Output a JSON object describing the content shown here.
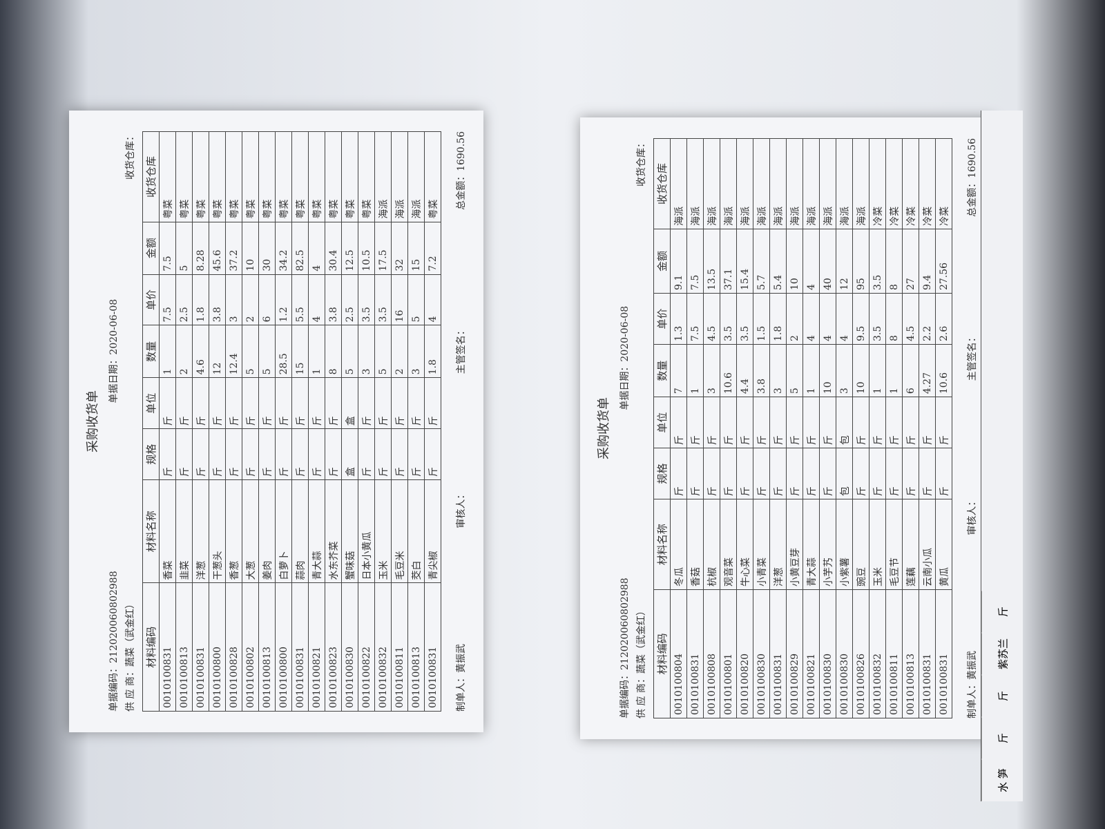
{
  "documents": [
    {
      "title": "采购收货单",
      "code_label": "单据编码：",
      "code": "212020060802988",
      "date_label": "单据日期：",
      "date": "2020-06-08",
      "supplier_label": "供 应 商：",
      "supplier": "蔬菜（武金红）",
      "warehouse_label": "收货仓库：",
      "columns": [
        "材料编码",
        "材料名称",
        "规格",
        "单位",
        "数量",
        "单价",
        "金额",
        "收货仓库"
      ],
      "rows": [
        [
          "0010100831",
          "香菜",
          "斤",
          "斤",
          1,
          7.5,
          7.5,
          "粤菜"
        ],
        [
          "0010100813",
          "韭菜",
          "斤",
          "斤",
          2,
          2.5,
          5,
          "粤菜"
        ],
        [
          "0010100831",
          "洋葱",
          "斤",
          "斤",
          4.6,
          1.8,
          8.28,
          "粤菜"
        ],
        [
          "0010100800",
          "干葱头",
          "斤",
          "斤",
          12,
          3.8,
          45.6,
          "粤菜"
        ],
        [
          "0010100828",
          "香葱",
          "斤",
          "斤",
          12.4,
          3,
          37.2,
          "粤菜"
        ],
        [
          "0010100802",
          "大葱",
          "斤",
          "斤",
          5,
          2,
          10,
          "粤菜"
        ],
        [
          "0010100813",
          "姜肉",
          "斤",
          "斤",
          5,
          6,
          30,
          "粤菜"
        ],
        [
          "0010100800",
          "白萝卜",
          "斤",
          "斤",
          28.5,
          1.2,
          34.2,
          "粤菜"
        ],
        [
          "0010100831",
          "蒜肉",
          "斤",
          "斤",
          15,
          5.5,
          82.5,
          "粤菜"
        ],
        [
          "0010100821",
          "青大蒜",
          "斤",
          "斤",
          1,
          4,
          4,
          "粤菜"
        ],
        [
          "0010100823",
          "水东芥菜",
          "斤",
          "斤",
          8,
          3.8,
          30.4,
          "粤菜"
        ],
        [
          "0010100830",
          "蟹味菇",
          "盒",
          "盒",
          5,
          2.5,
          12.5,
          "粤菜"
        ],
        [
          "0010100822",
          "日本小黄瓜",
          "斤",
          "斤",
          3,
          3.5,
          10.5,
          "粤菜"
        ],
        [
          "0010100832",
          "玉米",
          "斤",
          "斤",
          5,
          3.5,
          17.5,
          "海派"
        ],
        [
          "0010100811",
          "毛豆米",
          "斤",
          "斤",
          2,
          16,
          32,
          "海派"
        ],
        [
          "0010100813",
          "茭白",
          "斤",
          "斤",
          3,
          5,
          15,
          "海派"
        ],
        [
          "0010100831",
          "青尖椒",
          "斤",
          "斤",
          1.8,
          4,
          7.2,
          "粤菜"
        ]
      ],
      "footer": {
        "maker_label": "制单人：",
        "maker": "黄振武",
        "auditor_label": "审核人：",
        "manager_label": "主管签名：",
        "total_label": "总金额：",
        "total": 1690.56
      }
    },
    {
      "title": "采购收货单",
      "code_label": "单据编码：",
      "code": "212020060802988",
      "date_label": "单据日期：",
      "date": "2020-06-08",
      "supplier_label": "供 应 商：",
      "supplier": "蔬菜（武金红）",
      "warehouse_label": "收货仓库：",
      "columns": [
        "材料编码",
        "材料名称",
        "规格",
        "单位",
        "数量",
        "单价",
        "金额",
        "收货仓库"
      ],
      "rows": [
        [
          "0010100804",
          "冬瓜",
          "斤",
          "斤",
          7,
          1.3,
          9.1,
          "海派"
        ],
        [
          "0010100831",
          "香菇",
          "斤",
          "斤",
          1,
          7.5,
          7.5,
          "海派"
        ],
        [
          "0010100808",
          "杭椒",
          "斤",
          "斤",
          3,
          4.5,
          13.5,
          "海派"
        ],
        [
          "0010100801",
          "观音菜",
          "斤",
          "斤",
          10.6,
          3.5,
          37.1,
          "海派"
        ],
        [
          "0010100820",
          "牛心菜",
          "斤",
          "斤",
          4.4,
          3.5,
          15.4,
          "海派"
        ],
        [
          "0010100830",
          "小青菜",
          "斤",
          "斤",
          3.8,
          1.5,
          5.7,
          "海派"
        ],
        [
          "0010100831",
          "洋葱",
          "斤",
          "斤",
          3,
          1.8,
          5.4,
          "海派"
        ],
        [
          "0010100829",
          "小黄豆芽",
          "斤",
          "斤",
          5,
          2,
          10,
          "海派"
        ],
        [
          "0010100821",
          "青大蒜",
          "斤",
          "斤",
          1,
          4,
          4,
          "海派"
        ],
        [
          "0010100830",
          "小芋艿",
          "斤",
          "斤",
          10,
          4,
          40,
          "海派"
        ],
        [
          "0010100830",
          "小紫薯",
          "包",
          "包",
          3,
          4,
          12,
          "海派"
        ],
        [
          "0010100826",
          "豌豆",
          "斤",
          "斤",
          10,
          9.5,
          95,
          "海派"
        ],
        [
          "0010100832",
          "玉米",
          "斤",
          "斤",
          1,
          3.5,
          3.5,
          "冷菜"
        ],
        [
          "0010100811",
          "毛豆节",
          "斤",
          "斤",
          1,
          8,
          8,
          "冷菜"
        ],
        [
          "0010100813",
          "莲藕",
          "斤",
          "斤",
          6,
          4.5,
          27,
          "冷菜"
        ],
        [
          "0010100831",
          "云南小瓜",
          "斤",
          "斤",
          4.27,
          2.2,
          9.4,
          "冷菜"
        ],
        [
          "0010100831",
          "黄瓜",
          "斤",
          "斤",
          10.6,
          2.6,
          27.56,
          "冷菜"
        ]
      ],
      "footer": {
        "maker_label": "制单人：",
        "maker": "黄振武",
        "auditor_label": "审核人：",
        "manager_label": "主管签名：",
        "total_label": "总金额：",
        "total": 1690.56
      }
    }
  ],
  "slip": [
    "水 笋",
    "斤",
    "斤",
    "紫苏兰",
    "斤"
  ]
}
